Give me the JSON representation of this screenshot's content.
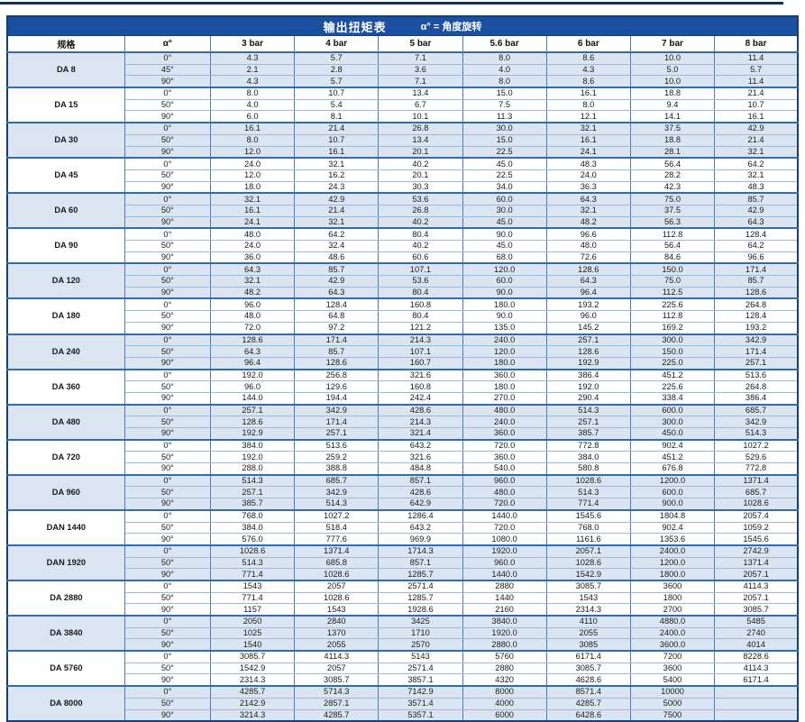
{
  "page": {
    "title": "输出扭矩表",
    "title_note": "α° = 角度旋转"
  },
  "table": {
    "columns": [
      "规格",
      "α°",
      "3 bar",
      "4 bar",
      "5 bar",
      "5.6 bar",
      "6 bar",
      "7 bar",
      "8 bar"
    ],
    "groups": [
      {
        "spec": "DA 8",
        "rows": [
          {
            "angle": "0°",
            "values": [
              "4.3",
              "5.7",
              "7.1",
              "8.0",
              "8.6",
              "10.0",
              "11.4"
            ]
          },
          {
            "angle": "45°",
            "values": [
              "2.1",
              "2.8",
              "3.6",
              "4.0",
              "4.3",
              "5.0",
              "5.7"
            ]
          },
          {
            "angle": "90°",
            "values": [
              "4.3",
              "5.7",
              "7.1",
              "8.0",
              "8.6",
              "10.0",
              "11.4"
            ]
          }
        ]
      },
      {
        "spec": "DA 15",
        "rows": [
          {
            "angle": "0°",
            "values": [
              "8.0",
              "10.7",
              "13.4",
              "15.0",
              "16.1",
              "18.8",
              "21.4"
            ]
          },
          {
            "angle": "50°",
            "values": [
              "4.0",
              "5.4",
              "6.7",
              "7.5",
              "8.0",
              "9.4",
              "10.7"
            ]
          },
          {
            "angle": "90°",
            "values": [
              "6.0",
              "8.1",
              "10.1",
              "11.3",
              "12.1",
              "14.1",
              "16.1"
            ]
          }
        ]
      },
      {
        "spec": "DA 30",
        "rows": [
          {
            "angle": "0°",
            "values": [
              "16.1",
              "21.4",
              "26.8",
              "30.0",
              "32.1",
              "37.5",
              "42.9"
            ]
          },
          {
            "angle": "50°",
            "values": [
              "8.0",
              "10.7",
              "13.4",
              "15.0",
              "16.1",
              "18.8",
              "21.4"
            ]
          },
          {
            "angle": "90°",
            "values": [
              "12.0",
              "16.1",
              "20.1",
              "22.5",
              "24.1",
              "28.1",
              "32.1"
            ]
          }
        ]
      },
      {
        "spec": "DA 45",
        "rows": [
          {
            "angle": "0°",
            "values": [
              "24.0",
              "32.1",
              "40.2",
              "45.0",
              "48.3",
              "56.4",
              "64.2"
            ]
          },
          {
            "angle": "50°",
            "values": [
              "12.0",
              "16.2",
              "20.1",
              "22.5",
              "24.0",
              "28.2",
              "32.1"
            ]
          },
          {
            "angle": "90°",
            "values": [
              "18.0",
              "24.3",
              "30.3",
              "34.0",
              "36.3",
              "42.3",
              "48.3"
            ]
          }
        ]
      },
      {
        "spec": "DA 60",
        "rows": [
          {
            "angle": "0°",
            "values": [
              "32.1",
              "42.9",
              "53.6",
              "60.0",
              "64.3",
              "75.0",
              "85.7"
            ]
          },
          {
            "angle": "50°",
            "values": [
              "16.1",
              "21.4",
              "26.8",
              "30.0",
              "32.1",
              "37.5",
              "42.9"
            ]
          },
          {
            "angle": "90°",
            "values": [
              "24.1",
              "32.1",
              "40.2",
              "45.0",
              "48.2",
              "56.3",
              "64.3"
            ]
          }
        ]
      },
      {
        "spec": "DA 90",
        "rows": [
          {
            "angle": "0°",
            "values": [
              "48.0",
              "64.2",
              "80.4",
              "90.0",
              "96.6",
              "112.8",
              "128.4"
            ]
          },
          {
            "angle": "50°",
            "values": [
              "24.0",
              "32.4",
              "40.2",
              "45.0",
              "48.0",
              "56.4",
              "64.2"
            ]
          },
          {
            "angle": "90°",
            "values": [
              "36.0",
              "48.6",
              "60.6",
              "68.0",
              "72.6",
              "84.6",
              "96.6"
            ]
          }
        ]
      },
      {
        "spec": "DA 120",
        "rows": [
          {
            "angle": "0°",
            "values": [
              "64.3",
              "85.7",
              "107.1",
              "120.0",
              "128.6",
              "150.0",
              "171.4"
            ]
          },
          {
            "angle": "50°",
            "values": [
              "32.1",
              "42.9",
              "53.6",
              "60.0",
              "64.3",
              "75.0",
              "85.7"
            ]
          },
          {
            "angle": "90°",
            "values": [
              "48.2",
              "64.3",
              "80.4",
              "90.0",
              "96.4",
              "112.5",
              "128.6"
            ]
          }
        ]
      },
      {
        "spec": "DA 180",
        "rows": [
          {
            "angle": "0°",
            "values": [
              "96.0",
              "128.4",
              "160.8",
              "180.0",
              "193.2",
              "225.6",
              "264.8"
            ]
          },
          {
            "angle": "50°",
            "values": [
              "48.0",
              "64.8",
              "80.4",
              "90.0",
              "96.0",
              "112.8",
              "128.4"
            ]
          },
          {
            "angle": "90°",
            "values": [
              "72.0",
              "97.2",
              "121.2",
              "135.0",
              "145.2",
              "169.2",
              "193.2"
            ]
          }
        ]
      },
      {
        "spec": "DA 240",
        "rows": [
          {
            "angle": "0°",
            "values": [
              "128.6",
              "171.4",
              "214.3",
              "240.0",
              "257.1",
              "300.0",
              "342.9"
            ]
          },
          {
            "angle": "50°",
            "values": [
              "64.3",
              "85.7",
              "107.1",
              "120.0",
              "128.6",
              "150.0",
              "171.4"
            ]
          },
          {
            "angle": "90°",
            "values": [
              "96.4",
              "128.6",
              "160.7",
              "180.0",
              "192.9",
              "225.0",
              "257.1"
            ]
          }
        ]
      },
      {
        "spec": "DA 360",
        "rows": [
          {
            "angle": "0°",
            "values": [
              "192.0",
              "256.8",
              "321.6",
              "360.0",
              "386.4",
              "451.2",
              "513.6"
            ]
          },
          {
            "angle": "50°",
            "values": [
              "96.0",
              "129.6",
              "160.8",
              "180.0",
              "192.0",
              "225.6",
              "264.8"
            ]
          },
          {
            "angle": "90°",
            "values": [
              "144.0",
              "194.4",
              "242.4",
              "270.0",
              "290.4",
              "338.4",
              "386.4"
            ]
          }
        ]
      },
      {
        "spec": "DA 480",
        "rows": [
          {
            "angle": "0°",
            "values": [
              "257.1",
              "342.9",
              "428.6",
              "480.0",
              "514.3",
              "600.0",
              "685.7"
            ]
          },
          {
            "angle": "50°",
            "values": [
              "128.6",
              "171.4",
              "214.3",
              "240.0",
              "257.1",
              "300.0",
              "342.9"
            ]
          },
          {
            "angle": "90°",
            "values": [
              "192.9",
              "257.1",
              "321.4",
              "360.0",
              "385.7",
              "450.0",
              "514.3"
            ]
          }
        ]
      },
      {
        "spec": "DA 720",
        "rows": [
          {
            "angle": "0°",
            "values": [
              "384.0",
              "513.6",
              "643.2",
              "720.0",
              "772.8",
              "902.4",
              "1027.2"
            ]
          },
          {
            "angle": "50°",
            "values": [
              "192.0",
              "259.2",
              "321.6",
              "360.0",
              "384.0",
              "451.2",
              "529.6"
            ]
          },
          {
            "angle": "90°",
            "values": [
              "288.0",
              "388.8",
              "484.8",
              "540.0",
              "580.8",
              "676.8",
              "772.8"
            ]
          }
        ]
      },
      {
        "spec": "DA 960",
        "rows": [
          {
            "angle": "0°",
            "values": [
              "514.3",
              "685.7",
              "857.1",
              "960.0",
              "1028.6",
              "1200.0",
              "1371.4"
            ]
          },
          {
            "angle": "50°",
            "values": [
              "257.1",
              "342.9",
              "428.6",
              "480.0",
              "514.3",
              "600.0",
              "685.7"
            ]
          },
          {
            "angle": "90°",
            "values": [
              "385.7",
              "514.3",
              "642.9",
              "720.0",
              "771.4",
              "900.0",
              "1028.6"
            ]
          }
        ]
      },
      {
        "spec": "DAN 1440",
        "rows": [
          {
            "angle": "0°",
            "values": [
              "768.0",
              "1027.2",
              "1286.4",
              "1440.0",
              "1545.6",
              "1804.8",
              "2057.4"
            ]
          },
          {
            "angle": "50°",
            "values": [
              "384.0",
              "518.4",
              "643.2",
              "720.0",
              "768.0",
              "902.4",
              "1059.2"
            ]
          },
          {
            "angle": "90°",
            "values": [
              "576.0",
              "777.6",
              "969.9",
              "1080.0",
              "1161.6",
              "1353.6",
              "1545.6"
            ]
          }
        ]
      },
      {
        "spec": "DAN 1920",
        "rows": [
          {
            "angle": "0°",
            "values": [
              "1028.6",
              "1371.4",
              "1714.3",
              "1920.0",
              "2057.1",
              "2400.0",
              "2742.9"
            ]
          },
          {
            "angle": "50°",
            "values": [
              "514.3",
              "685.8",
              "857.1",
              "960.0",
              "1028.6",
              "1200.0",
              "1371.4"
            ]
          },
          {
            "angle": "90°",
            "values": [
              "771.4",
              "1028.6",
              "1285.7",
              "1440.0",
              "1542.9",
              "1800.0",
              "2057.1"
            ]
          }
        ]
      },
      {
        "spec": "DA 2880",
        "rows": [
          {
            "angle": "0°",
            "values": [
              "1543",
              "2057",
              "2571.4",
              "2880",
              "3085.7",
              "3600",
              "4114.3"
            ]
          },
          {
            "angle": "50°",
            "values": [
              "771.4",
              "1028.6",
              "1285.7",
              "1440",
              "1543",
              "1800",
              "2057.1"
            ]
          },
          {
            "angle": "90°",
            "values": [
              "1157",
              "1543",
              "1928.6",
              "2160",
              "2314.3",
              "2700",
              "3085.7"
            ]
          }
        ]
      },
      {
        "spec": "DA 3840",
        "rows": [
          {
            "angle": "0°",
            "values": [
              "2050",
              "2840",
              "3425",
              "3840.0",
              "4110",
              "4880.0",
              "5485"
            ]
          },
          {
            "angle": "50°",
            "values": [
              "1025",
              "1370",
              "1710",
              "1920.0",
              "2055",
              "2400.0",
              "2740"
            ]
          },
          {
            "angle": "90°",
            "values": [
              "1540",
              "2055",
              "2570",
              "2880.0",
              "3085",
              "3600.0",
              "4014"
            ]
          }
        ]
      },
      {
        "spec": "DA 5760",
        "rows": [
          {
            "angle": "0°",
            "values": [
              "3085.7",
              "4114.3",
              "5143",
              "5760",
              "6171.4",
              "7200",
              "8228.6"
            ]
          },
          {
            "angle": "50°",
            "values": [
              "1542.9",
              "2057",
              "2571.4",
              "2880",
              "3085.7",
              "3600",
              "4114.3"
            ]
          },
          {
            "angle": "90°",
            "values": [
              "2314.3",
              "3085.7",
              "3857.1",
              "4320",
              "4628.6",
              "5400",
              "6171.4"
            ]
          }
        ]
      },
      {
        "spec": "DA 8000",
        "rows": [
          {
            "angle": "0°",
            "values": [
              "4285.7",
              "5714.3",
              "7142.9",
              "8000",
              "8571.4",
              "10000",
              ""
            ]
          },
          {
            "angle": "50°",
            "values": [
              "2142.9",
              "2857.1",
              "3571.4",
              "4000",
              "4285.7",
              "5000",
              ""
            ]
          },
          {
            "angle": "90°",
            "values": [
              "3214.3",
              "4285.7",
              "5357.1",
              "6000",
              "6428.6",
              "7500",
              ""
            ]
          }
        ]
      }
    ]
  },
  "colors": {
    "title_bar": "#1b4f9f",
    "outer_border": "#123e7a",
    "grid_border": "#4a7dbe",
    "group_divider": "#2e6db4",
    "row_shade": "#dbe5f1",
    "text": "#1a1a1a",
    "title_text": "#ffffff"
  }
}
